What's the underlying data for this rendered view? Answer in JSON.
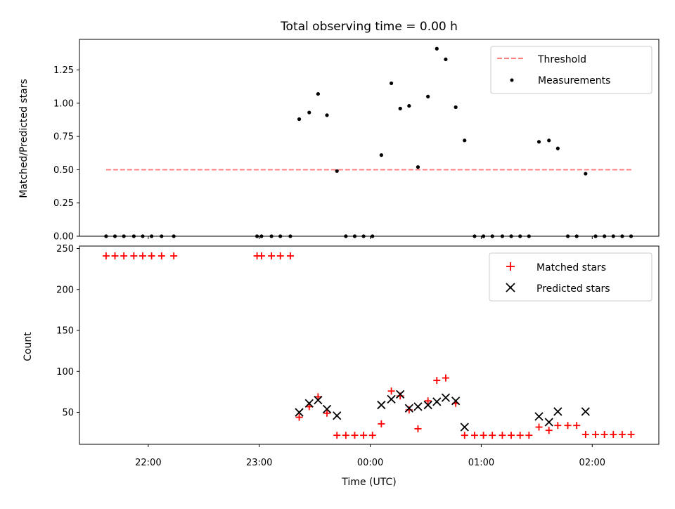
{
  "chart_data": [
    {
      "type": "scatter",
      "title": "Total observing time = 0.00 h",
      "xlabel": "",
      "ylabel": "Matched/Predicted stars",
      "ylim": [
        0,
        1.48
      ],
      "xlim_utc_hours": [
        21.38,
        26.6
      ],
      "yticks": [
        0,
        0.25,
        0.5,
        0.75,
        1.0,
        1.25
      ],
      "ytick_labels": [
        "0.00",
        "0.25",
        "0.50",
        "0.75",
        "1.00",
        "1.25"
      ],
      "grid": false,
      "legend": "top-right",
      "threshold": {
        "name": "Threshold",
        "value": 0.5,
        "x_range": [
          21.62,
          26.36
        ],
        "color": "#ff7f7f",
        "style": "dashed"
      },
      "series": [
        {
          "name": "Measurements",
          "color": "#000000",
          "x": [
            21.62,
            21.7,
            21.78,
            21.87,
            21.95,
            22.03,
            22.12,
            22.23,
            22.98,
            23.02,
            23.11,
            23.19,
            23.28,
            23.36,
            23.45,
            23.53,
            23.61,
            23.7,
            23.78,
            23.86,
            23.94,
            24.02,
            24.1,
            24.19,
            24.27,
            24.35,
            24.43,
            24.52,
            24.6,
            24.68,
            24.77,
            24.85,
            24.94,
            25.02,
            25.1,
            25.19,
            25.27,
            25.35,
            25.43,
            25.52,
            25.61,
            25.69,
            25.78,
            25.86,
            25.94,
            26.03,
            26.11,
            26.19,
            26.27,
            26.35
          ],
          "y": [
            0,
            0,
            0,
            0,
            0,
            0,
            0,
            0,
            0,
            0,
            0,
            0,
            0,
            0.88,
            0.93,
            1.07,
            0.91,
            0.49,
            0,
            0,
            0,
            0,
            0.61,
            1.15,
            0.96,
            0.98,
            0.52,
            1.05,
            1.41,
            1.33,
            0.97,
            0.72,
            0,
            0,
            0,
            0,
            0,
            0,
            0,
            0.71,
            0.72,
            0.66,
            0,
            0,
            0.47,
            0,
            0,
            0,
            0,
            0
          ]
        }
      ]
    },
    {
      "type": "scatter",
      "title": "",
      "xlabel": "Time (UTC)",
      "ylabel": "Count",
      "ylim": [
        11,
        253
      ],
      "xlim_utc_hours": [
        21.38,
        26.6
      ],
      "xticks_utc_hours": [
        22,
        23,
        24,
        25,
        26
      ],
      "xtick_labels": [
        "22:00",
        "23:00",
        "00:00",
        "01:00",
        "02:00"
      ],
      "yticks": [
        50,
        100,
        150,
        200,
        250
      ],
      "ytick_labels": [
        "50",
        "100",
        "150",
        "200",
        "250"
      ],
      "grid": false,
      "legend": "top-right",
      "series": [
        {
          "name": "Matched stars",
          "marker": "+",
          "color": "#ff0000",
          "x": [
            21.62,
            21.7,
            21.78,
            21.87,
            21.95,
            22.03,
            22.12,
            22.23,
            22.98,
            23.02,
            23.11,
            23.19,
            23.28,
            23.36,
            23.45,
            23.53,
            23.61,
            23.7,
            23.78,
            23.86,
            23.94,
            24.02,
            24.1,
            24.19,
            24.27,
            24.35,
            24.43,
            24.52,
            24.6,
            24.68,
            24.77,
            24.85,
            24.94,
            25.02,
            25.1,
            25.19,
            25.27,
            25.35,
            25.43,
            25.52,
            25.61,
            25.69,
            25.78,
            25.86,
            25.94,
            26.03,
            26.11,
            26.19,
            26.27,
            26.35
          ],
          "y": [
            241,
            241,
            241,
            241,
            241,
            241,
            241,
            241,
            241,
            241,
            241,
            241,
            241,
            44,
            57,
            69,
            49,
            22,
            22,
            22,
            22,
            22,
            36,
            76,
            70,
            53,
            30,
            64,
            89,
            92,
            61,
            22,
            22,
            22,
            22,
            22,
            22,
            22,
            22,
            32,
            28,
            34,
            34,
            34,
            23,
            23,
            23,
            23,
            23,
            23
          ]
        },
        {
          "name": "Predicted stars",
          "marker": "x",
          "color": "#000000",
          "x": [
            23.36,
            23.45,
            23.53,
            23.61,
            23.7,
            24.1,
            24.19,
            24.27,
            24.35,
            24.43,
            24.52,
            24.6,
            24.68,
            24.77,
            24.85,
            25.52,
            25.61,
            25.69,
            25.94
          ],
          "y": [
            50,
            61,
            65,
            54,
            46,
            59,
            66,
            72,
            55,
            57,
            59,
            63,
            68,
            64,
            32,
            45,
            38,
            51,
            51
          ]
        }
      ]
    }
  ]
}
